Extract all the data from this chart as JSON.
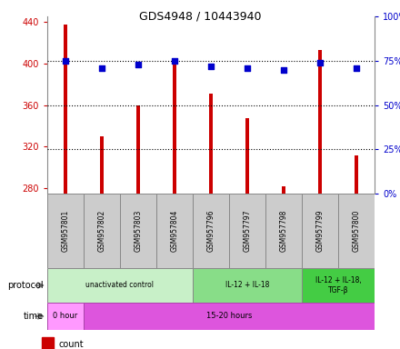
{
  "title": "GDS4948 / 10443940",
  "samples": [
    "GSM957801",
    "GSM957802",
    "GSM957803",
    "GSM957804",
    "GSM957796",
    "GSM957797",
    "GSM957798",
    "GSM957799",
    "GSM957800"
  ],
  "counts": [
    437,
    330,
    360,
    399,
    371,
    347,
    282,
    413,
    312
  ],
  "percentile_ranks": [
    75,
    71,
    73,
    75,
    72,
    71,
    70,
    74,
    71
  ],
  "ylim_left": [
    275,
    445
  ],
  "ylim_right": [
    0,
    100
  ],
  "yticks_left": [
    280,
    320,
    360,
    400,
    440
  ],
  "yticks_right": [
    0,
    25,
    50,
    75,
    100
  ],
  "protocol_groups": [
    {
      "label": "unactivated control",
      "start": 0,
      "end": 4,
      "color": "#c8f0c8"
    },
    {
      "label": "IL-12 + IL-18",
      "start": 4,
      "end": 7,
      "color": "#88dd88"
    },
    {
      "label": "IL-12 + IL-18,\nTGF-β",
      "start": 7,
      "end": 9,
      "color": "#44cc44"
    }
  ],
  "time_groups": [
    {
      "label": "0 hour",
      "start": 0,
      "end": 1,
      "color": "#ff99ff"
    },
    {
      "label": "15-20 hours",
      "start": 1,
      "end": 9,
      "color": "#dd55dd"
    }
  ],
  "bar_color": "#cc0000",
  "dot_color": "#0000cc",
  "label_color_left": "#cc0000",
  "label_color_right": "#0000cc",
  "bar_width": 0.12,
  "sample_box_color": "#cccccc",
  "sample_box_edge": "#888888"
}
